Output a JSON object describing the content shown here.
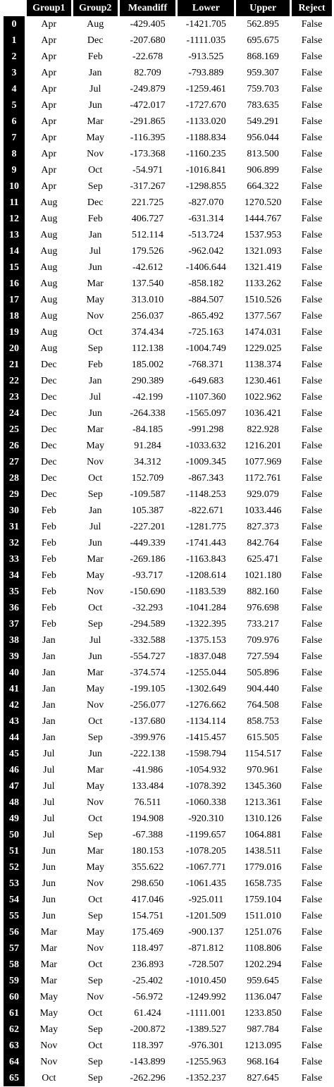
{
  "table": {
    "columns": [
      "Group1",
      "Group2",
      "Meandiff",
      "Lower",
      "Upper",
      "Reject"
    ],
    "rows": [
      {
        "index": "0",
        "cells": [
          "Apr",
          "Aug",
          "-429.405",
          "-1421.705",
          "562.895",
          "False"
        ]
      },
      {
        "index": "1",
        "cells": [
          "Apr",
          "Dec",
          "-207.680",
          "-1111.035",
          "695.675",
          "False"
        ]
      },
      {
        "index": "2",
        "cells": [
          "Apr",
          "Feb",
          "-22.678",
          "-913.525",
          "868.169",
          "False"
        ]
      },
      {
        "index": "3",
        "cells": [
          "Apr",
          "Jan",
          "82.709",
          "-793.889",
          "959.307",
          "False"
        ]
      },
      {
        "index": "4",
        "cells": [
          "Apr",
          "Jul",
          "-249.879",
          "-1259.461",
          "759.703",
          "False"
        ]
      },
      {
        "index": "5",
        "cells": [
          "Apr",
          "Jun",
          "-472.017",
          "-1727.670",
          "783.635",
          "False"
        ]
      },
      {
        "index": "6",
        "cells": [
          "Apr",
          "Mar",
          "-291.865",
          "-1133.020",
          "549.291",
          "False"
        ]
      },
      {
        "index": "7",
        "cells": [
          "Apr",
          "May",
          "-116.395",
          "-1188.834",
          "956.044",
          "False"
        ]
      },
      {
        "index": "8",
        "cells": [
          "Apr",
          "Nov",
          "-173.368",
          "-1160.235",
          "813.500",
          "False"
        ]
      },
      {
        "index": "9",
        "cells": [
          "Apr",
          "Oct",
          "-54.971",
          "-1016.841",
          "906.899",
          "False"
        ]
      },
      {
        "index": "10",
        "cells": [
          "Apr",
          "Sep",
          "-317.267",
          "-1298.855",
          "664.322",
          "False"
        ]
      },
      {
        "index": "11",
        "cells": [
          "Aug",
          "Dec",
          "221.725",
          "-827.070",
          "1270.520",
          "False"
        ]
      },
      {
        "index": "12",
        "cells": [
          "Aug",
          "Feb",
          "406.727",
          "-631.314",
          "1444.767",
          "False"
        ]
      },
      {
        "index": "13",
        "cells": [
          "Aug",
          "Jan",
          "512.114",
          "-513.724",
          "1537.953",
          "False"
        ]
      },
      {
        "index": "14",
        "cells": [
          "Aug",
          "Jul",
          "179.526",
          "-962.042",
          "1321.093",
          "False"
        ]
      },
      {
        "index": "15",
        "cells": [
          "Aug",
          "Jun",
          "-42.612",
          "-1406.644",
          "1321.419",
          "False"
        ]
      },
      {
        "index": "16",
        "cells": [
          "Aug",
          "Mar",
          "137.540",
          "-858.182",
          "1133.262",
          "False"
        ]
      },
      {
        "index": "17",
        "cells": [
          "Aug",
          "May",
          "313.010",
          "-884.507",
          "1510.526",
          "False"
        ]
      },
      {
        "index": "18",
        "cells": [
          "Aug",
          "Nov",
          "256.037",
          "-865.492",
          "1377.567",
          "False"
        ]
      },
      {
        "index": "19",
        "cells": [
          "Aug",
          "Oct",
          "374.434",
          "-725.163",
          "1474.031",
          "False"
        ]
      },
      {
        "index": "20",
        "cells": [
          "Aug",
          "Sep",
          "112.138",
          "-1004.749",
          "1229.025",
          "False"
        ]
      },
      {
        "index": "21",
        "cells": [
          "Dec",
          "Feb",
          "185.002",
          "-768.371",
          "1138.374",
          "False"
        ]
      },
      {
        "index": "22",
        "cells": [
          "Dec",
          "Jan",
          "290.389",
          "-649.683",
          "1230.461",
          "False"
        ]
      },
      {
        "index": "23",
        "cells": [
          "Dec",
          "Jul",
          "-42.199",
          "-1107.360",
          "1022.962",
          "False"
        ]
      },
      {
        "index": "24",
        "cells": [
          "Dec",
          "Jun",
          "-264.338",
          "-1565.097",
          "1036.421",
          "False"
        ]
      },
      {
        "index": "25",
        "cells": [
          "Dec",
          "Mar",
          "-84.185",
          "-991.298",
          "822.928",
          "False"
        ]
      },
      {
        "index": "26",
        "cells": [
          "Dec",
          "May",
          "91.284",
          "-1033.632",
          "1216.201",
          "False"
        ]
      },
      {
        "index": "27",
        "cells": [
          "Dec",
          "Nov",
          "34.312",
          "-1009.345",
          "1077.969",
          "False"
        ]
      },
      {
        "index": "28",
        "cells": [
          "Dec",
          "Oct",
          "152.709",
          "-867.343",
          "1172.761",
          "False"
        ]
      },
      {
        "index": "29",
        "cells": [
          "Dec",
          "Sep",
          "-109.587",
          "-1148.253",
          "929.079",
          "False"
        ]
      },
      {
        "index": "30",
        "cells": [
          "Feb",
          "Jan",
          "105.387",
          "-822.671",
          "1033.446",
          "False"
        ]
      },
      {
        "index": "31",
        "cells": [
          "Feb",
          "Jul",
          "-227.201",
          "-1281.775",
          "827.373",
          "False"
        ]
      },
      {
        "index": "32",
        "cells": [
          "Feb",
          "Jun",
          "-449.339",
          "-1741.443",
          "842.764",
          "False"
        ]
      },
      {
        "index": "33",
        "cells": [
          "Feb",
          "Mar",
          "-269.186",
          "-1163.843",
          "625.471",
          "False"
        ]
      },
      {
        "index": "34",
        "cells": [
          "Feb",
          "May",
          "-93.717",
          "-1208.614",
          "1021.180",
          "False"
        ]
      },
      {
        "index": "35",
        "cells": [
          "Feb",
          "Nov",
          "-150.690",
          "-1183.539",
          "882.160",
          "False"
        ]
      },
      {
        "index": "36",
        "cells": [
          "Feb",
          "Oct",
          "-32.293",
          "-1041.284",
          "976.698",
          "False"
        ]
      },
      {
        "index": "37",
        "cells": [
          "Feb",
          "Sep",
          "-294.589",
          "-1322.395",
          "733.217",
          "False"
        ]
      },
      {
        "index": "38",
        "cells": [
          "Jan",
          "Jul",
          "-332.588",
          "-1375.153",
          "709.976",
          "False"
        ]
      },
      {
        "index": "39",
        "cells": [
          "Jan",
          "Jun",
          "-554.727",
          "-1837.048",
          "727.594",
          "False"
        ]
      },
      {
        "index": "40",
        "cells": [
          "Jan",
          "Mar",
          "-374.574",
          "-1255.044",
          "505.896",
          "False"
        ]
      },
      {
        "index": "41",
        "cells": [
          "Jan",
          "May",
          "-199.105",
          "-1302.649",
          "904.440",
          "False"
        ]
      },
      {
        "index": "42",
        "cells": [
          "Jan",
          "Nov",
          "-256.077",
          "-1276.662",
          "764.508",
          "False"
        ]
      },
      {
        "index": "43",
        "cells": [
          "Jan",
          "Oct",
          "-137.680",
          "-1134.114",
          "858.753",
          "False"
        ]
      },
      {
        "index": "44",
        "cells": [
          "Jan",
          "Sep",
          "-399.976",
          "-1415.457",
          "615.505",
          "False"
        ]
      },
      {
        "index": "45",
        "cells": [
          "Jul",
          "Jun",
          "-222.138",
          "-1598.794",
          "1154.517",
          "False"
        ]
      },
      {
        "index": "46",
        "cells": [
          "Jul",
          "Mar",
          "-41.986",
          "-1054.932",
          "970.961",
          "False"
        ]
      },
      {
        "index": "47",
        "cells": [
          "Jul",
          "May",
          "133.484",
          "-1078.392",
          "1345.360",
          "False"
        ]
      },
      {
        "index": "48",
        "cells": [
          "Jul",
          "Nov",
          "76.511",
          "-1060.338",
          "1213.361",
          "False"
        ]
      },
      {
        "index": "49",
        "cells": [
          "Jul",
          "Oct",
          "194.908",
          "-920.310",
          "1310.126",
          "False"
        ]
      },
      {
        "index": "50",
        "cells": [
          "Jul",
          "Sep",
          "-67.388",
          "-1199.657",
          "1064.881",
          "False"
        ]
      },
      {
        "index": "51",
        "cells": [
          "Jun",
          "Mar",
          "180.153",
          "-1078.205",
          "1438.511",
          "False"
        ]
      },
      {
        "index": "52",
        "cells": [
          "Jun",
          "May",
          "355.622",
          "-1067.771",
          "1779.016",
          "False"
        ]
      },
      {
        "index": "53",
        "cells": [
          "Jun",
          "Nov",
          "298.650",
          "-1061.435",
          "1658.735",
          "False"
        ]
      },
      {
        "index": "54",
        "cells": [
          "Jun",
          "Oct",
          "417.046",
          "-925.011",
          "1759.104",
          "False"
        ]
      },
      {
        "index": "55",
        "cells": [
          "Jun",
          "Sep",
          "154.751",
          "-1201.509",
          "1511.010",
          "False"
        ]
      },
      {
        "index": "56",
        "cells": [
          "Mar",
          "May",
          "175.469",
          "-900.137",
          "1251.076",
          "False"
        ]
      },
      {
        "index": "57",
        "cells": [
          "Mar",
          "Nov",
          "118.497",
          "-871.812",
          "1108.806",
          "False"
        ]
      },
      {
        "index": "58",
        "cells": [
          "Mar",
          "Oct",
          "236.893",
          "-728.507",
          "1202.294",
          "False"
        ]
      },
      {
        "index": "59",
        "cells": [
          "Mar",
          "Sep",
          "-25.402",
          "-1010.450",
          "959.645",
          "False"
        ]
      },
      {
        "index": "60",
        "cells": [
          "May",
          "Nov",
          "-56.972",
          "-1249.992",
          "1136.047",
          "False"
        ]
      },
      {
        "index": "61",
        "cells": [
          "May",
          "Oct",
          "61.424",
          "-1111.001",
          "1233.850",
          "False"
        ]
      },
      {
        "index": "62",
        "cells": [
          "May",
          "Sep",
          "-200.872",
          "-1389.527",
          "987.784",
          "False"
        ]
      },
      {
        "index": "63",
        "cells": [
          "Nov",
          "Oct",
          "118.397",
          "-976.301",
          "1213.095",
          "False"
        ]
      },
      {
        "index": "64",
        "cells": [
          "Nov",
          "Sep",
          "-143.899",
          "-1255.963",
          "968.164",
          "False"
        ]
      },
      {
        "index": "65",
        "cells": [
          "Oct",
          "Sep",
          "-262.296",
          "-1352.237",
          "827.645",
          "False"
        ]
      }
    ]
  }
}
